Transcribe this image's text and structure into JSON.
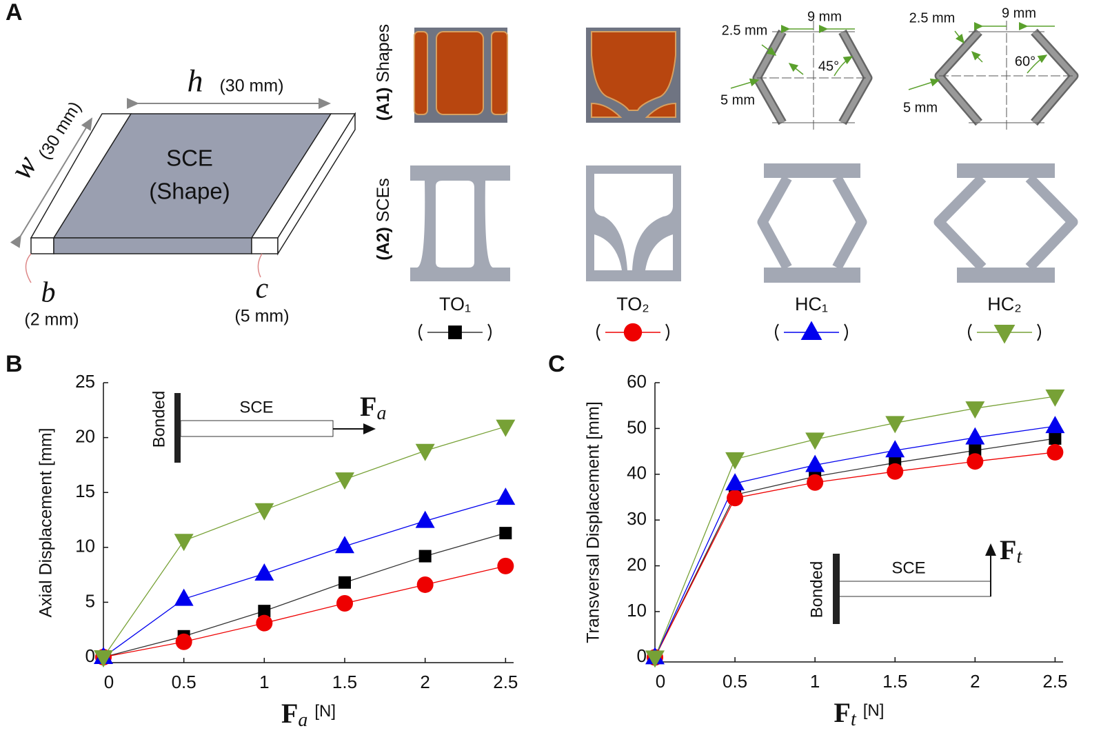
{
  "panel_labels": [
    "A",
    "B",
    "C"
  ],
  "panel_a": {
    "h": "h",
    "h_size": "(30 mm)",
    "w": "w",
    "w_size": "(30 mm)",
    "sce": "SCE",
    "shape": "(Shape)",
    "b": "b",
    "b_size": "(2 mm)",
    "c": "c",
    "c_size": "(5 mm)",
    "row1": {
      "tag": "(A1)",
      "label": "Shapes"
    },
    "row2": {
      "tag": "(A2)",
      "label": "SCEs"
    },
    "hc1_dims": {
      "strut": "2.5 mm",
      "top": "9 mm",
      "angle": "45°",
      "bottom": "5 mm"
    },
    "hc2_dims": {
      "strut": "2.5 mm",
      "top": "9 mm",
      "angle": "60°",
      "bottom": "5 mm"
    }
  },
  "chart_data": [
    {
      "type": "line",
      "ylabel": "Axial Displacement [mm]",
      "xlabel": {
        "symbol": "F",
        "subscript": "a",
        "unit": "[N]"
      },
      "inset": {
        "support": "Bonded",
        "beam": "SCE",
        "force": "F",
        "force_subscript": "a"
      },
      "x": [
        0,
        0.5,
        1,
        1.5,
        2,
        2.5
      ],
      "xlim": [
        0,
        2.55
      ],
      "xticks": [
        0,
        0.5,
        1,
        1.5,
        2,
        2.5
      ],
      "ylim": [
        -0.5,
        25
      ],
      "yticks": [
        0,
        5,
        10,
        15,
        20,
        25
      ],
      "series": [
        {
          "name": "TO₁",
          "color": "#000000",
          "line_color": "#333333",
          "marker": "square",
          "values": [
            0,
            1.9,
            4.2,
            6.8,
            9.2,
            11.3
          ]
        },
        {
          "name": "TO₂",
          "color": "#ee0000",
          "line_color": "#ee0000",
          "marker": "circle",
          "values": [
            0,
            1.4,
            3.1,
            4.9,
            6.6,
            8.3
          ]
        },
        {
          "name": "HC₁",
          "color": "#0000ee",
          "line_color": "#0000ee",
          "marker": "triangle-up",
          "values": [
            0,
            5.3,
            7.6,
            10.1,
            12.4,
            14.5
          ]
        },
        {
          "name": "HC₂",
          "color": "#77a136",
          "line_color": "#77a136",
          "marker": "triangle-down",
          "values": [
            0,
            10.6,
            13.4,
            16.2,
            18.8,
            21.0
          ]
        }
      ]
    },
    {
      "type": "line",
      "ylabel": "Transversal Displacement [mm]",
      "xlabel": {
        "symbol": "F",
        "subscript": "t",
        "unit": "[N]"
      },
      "inset": {
        "support": "Bonded",
        "beam": "SCE",
        "force": "F",
        "force_subscript": "t"
      },
      "x": [
        0,
        0.5,
        1,
        1.5,
        2,
        2.5
      ],
      "xlim": [
        0,
        2.55
      ],
      "xticks": [
        0,
        0.5,
        1,
        1.5,
        2,
        2.5
      ],
      "ylim": [
        -1,
        60
      ],
      "yticks": [
        0,
        10,
        20,
        30,
        40,
        50,
        60
      ],
      "series": [
        {
          "name": "TO₁",
          "color": "#000000",
          "line_color": "#333333",
          "marker": "square",
          "values": [
            0,
            35.5,
            39.5,
            42.5,
            45.2,
            47.8
          ]
        },
        {
          "name": "TO₂",
          "color": "#ee0000",
          "line_color": "#ee0000",
          "marker": "circle",
          "values": [
            0,
            34.8,
            38.2,
            40.6,
            42.8,
            44.8
          ]
        },
        {
          "name": "HC₁",
          "color": "#0000ee",
          "line_color": "#0000ee",
          "marker": "triangle-up",
          "values": [
            0,
            38,
            42,
            45.2,
            48,
            50.5
          ]
        },
        {
          "name": "HC₂",
          "color": "#77a136",
          "line_color": "#77a136",
          "marker": "triangle-down",
          "values": [
            0,
            43.3,
            47.6,
            51.2,
            54.4,
            57
          ]
        }
      ]
    }
  ]
}
